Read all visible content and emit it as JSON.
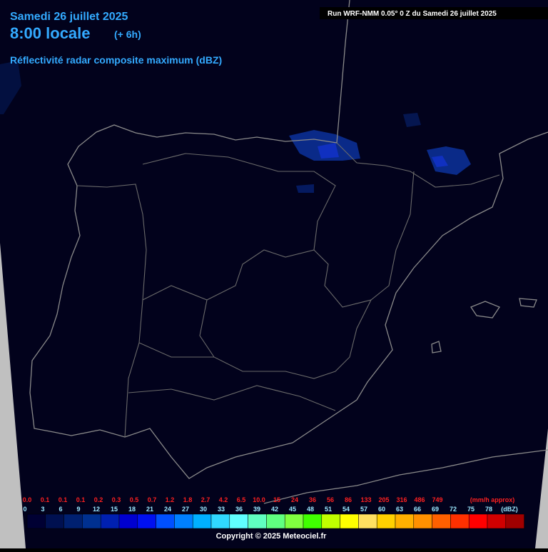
{
  "header": {
    "date": "Samedi 26 juillet 2025",
    "time": "8:00 locale",
    "offset": "(+ 6h)",
    "product": "Réflectivité radar composite maximum (dBZ)",
    "run": "Run WRF-NMM 0.05° 0 Z du Samedi 26 juillet 2025"
  },
  "legend": {
    "mmh": [
      "0.0",
      "0.1",
      "0.1",
      "0.1",
      "0.2",
      "0.3",
      "0.5",
      "0.7",
      "1.2",
      "1.8",
      "2.7",
      "4.2",
      "6.5",
      "10.0",
      "15",
      "24",
      "36",
      "56",
      "86",
      "133",
      "205",
      "316",
      "486",
      "749"
    ],
    "mmh_unit": "(mm/h approx)",
    "dbz": [
      "0",
      "3",
      "6",
      "9",
      "12",
      "15",
      "18",
      "21",
      "24",
      "27",
      "30",
      "33",
      "36",
      "39",
      "42",
      "45",
      "48",
      "51",
      "54",
      "57",
      "60",
      "63",
      "66",
      "69",
      "72",
      "75",
      "78"
    ],
    "dbz_unit": "(dBZ)",
    "colors": [
      "#000033",
      "#001050",
      "#002070",
      "#003090",
      "#0020b0",
      "#0000d0",
      "#0010f0",
      "#0050ff",
      "#0080ff",
      "#00b0ff",
      "#30d8ff",
      "#60ffff",
      "#60ffc0",
      "#60ff80",
      "#80ff40",
      "#40ff00",
      "#c0ff00",
      "#ffff00",
      "#ffe060",
      "#ffd000",
      "#ffb000",
      "#ff9000",
      "#ff6000",
      "#ff3000",
      "#ff0000",
      "#d00000",
      "#a00000"
    ]
  },
  "footer": {
    "copyright": "Copyright © 2025 Meteociel.fr"
  }
}
